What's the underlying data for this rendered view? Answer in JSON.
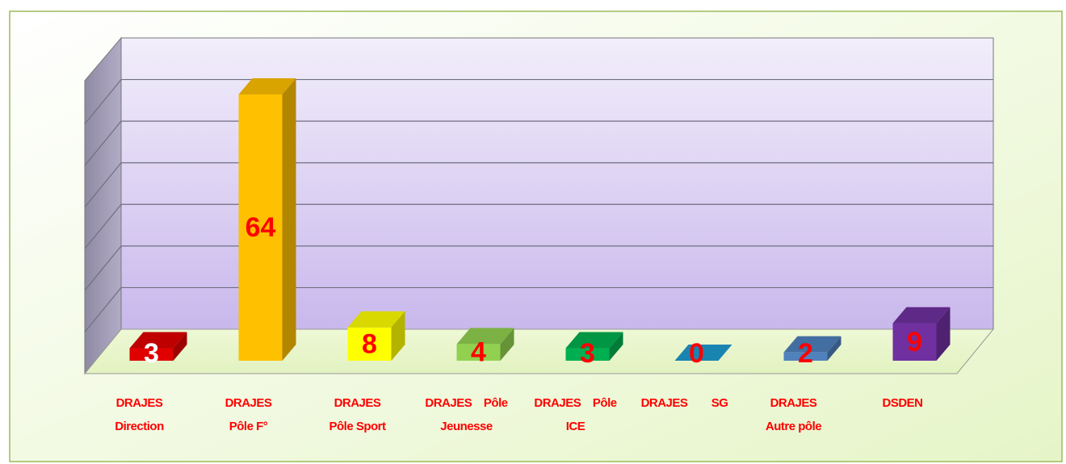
{
  "chart_data": {
    "type": "bar3d",
    "categories": [
      "DRAJES\nDirection",
      "DRAJES\nPôle F°",
      "DRAJES\nPôle Sport",
      "DRAJES    Pôle\nJeunesse",
      "DRAJES    Pôle\nICE",
      "DRAJES        SG",
      "DRAJES\nAutre pôle",
      "DSDEN"
    ],
    "values": [
      3,
      64,
      8,
      4,
      3,
      0,
      2,
      9
    ],
    "colors": [
      "#e00000",
      "#ffc000",
      "#ffff00",
      "#92d050",
      "#00b050",
      "#1f9bd0",
      "#4f81bd",
      "#7030a0"
    ],
    "label_colors": [
      "#ffffff",
      "#ff0000",
      "#ff0000",
      "#ff0000",
      "#ff0000",
      "#ff0000",
      "#ff0000",
      "#ff0000"
    ],
    "ylim": [
      0,
      70
    ]
  }
}
